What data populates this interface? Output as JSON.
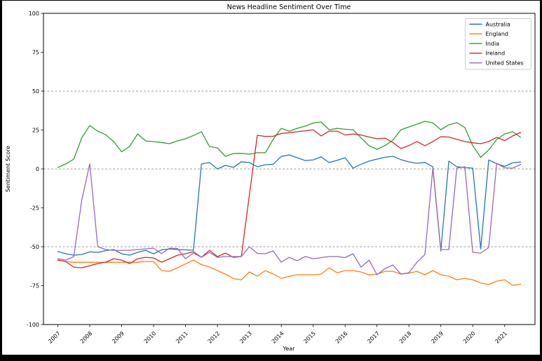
{
  "figure": {
    "outer_background": "#000000",
    "facecolor": "#ffffff",
    "spine_color": "#000000",
    "gridline_color": "#7f7f7f"
  },
  "chart_data": {
    "type": "line",
    "title": "News Headline Sentiment Over Time",
    "xlabel": "Year",
    "ylabel": "Sentiment Score",
    "xlim": [
      2006.55,
      2021.95
    ],
    "ylim": [
      -100,
      100
    ],
    "xticks": [
      2007,
      2008,
      2009,
      2010,
      2011,
      2012,
      2013,
      2014,
      2015,
      2016,
      2017,
      2018,
      2019,
      2020,
      2021
    ],
    "yticks": [
      100,
      75,
      50,
      25,
      0,
      -25,
      -50,
      -75,
      -100
    ],
    "gridlines_y": [
      50,
      0,
      -50
    ],
    "grid_style": "dashed",
    "legend_position": "upper right",
    "x": [
      2007.0,
      2007.25,
      2007.5,
      2007.75,
      2008.0,
      2008.25,
      2008.5,
      2008.75,
      2009.0,
      2009.25,
      2009.5,
      2009.75,
      2010.0,
      2010.25,
      2010.5,
      2010.75,
      2011.0,
      2011.25,
      2011.5,
      2011.75,
      2012.0,
      2012.25,
      2012.5,
      2012.75,
      2013.0,
      2013.25,
      2013.5,
      2013.75,
      2014.0,
      2014.25,
      2014.5,
      2014.75,
      2015.0,
      2015.25,
      2015.5,
      2015.75,
      2016.0,
      2016.25,
      2016.5,
      2016.75,
      2017.0,
      2017.25,
      2017.5,
      2017.75,
      2018.0,
      2018.25,
      2018.5,
      2018.75,
      2019.0,
      2019.25,
      2019.5,
      2019.75,
      2020.0,
      2020.25,
      2020.5,
      2020.75,
      2021.0,
      2021.25,
      2021.5
    ],
    "series": [
      {
        "name": "Australia",
        "color": "#1f77b4",
        "values": [
          -53,
          -54.5,
          -55.4,
          -55,
          -53.3,
          -53.6,
          -52.5,
          -51.8,
          -54.5,
          -55.4,
          -53.6,
          -52.3,
          -54.5,
          -52,
          -51.4,
          -51.8,
          -52,
          -52.3,
          3.2,
          4.1,
          0,
          2.3,
          1,
          4.6,
          4.1,
          1.4,
          2.7,
          3,
          8,
          9,
          7.2,
          5.4,
          5.8,
          7.7,
          4.1,
          5.5,
          7.2,
          0.5,
          3,
          5,
          6.3,
          7.5,
          8.1,
          6,
          4.5,
          3.6,
          4.2,
          1.4,
          -52.7,
          5,
          1.4,
          0.9,
          0.5,
          -51.4,
          5.7,
          3.4,
          1.6,
          4,
          4.4
        ]
      },
      {
        "name": "England",
        "color": "#ff7f0e",
        "values": [
          -58.5,
          -59.5,
          -60,
          -60,
          -60,
          -60,
          -60,
          -60,
          -60,
          -60,
          -60,
          -59.5,
          -59.5,
          -65.3,
          -65.8,
          -63.5,
          -61,
          -58.6,
          -61.5,
          -63,
          -65.3,
          -67.6,
          -70.5,
          -71.2,
          -66.2,
          -68.9,
          -65.3,
          -67.5,
          -70.3,
          -69,
          -68,
          -68,
          -68,
          -67.6,
          -63.5,
          -66.7,
          -65.3,
          -65.3,
          -66.2,
          -68,
          -67.6,
          -65.8,
          -65.8,
          -67.5,
          -67,
          -65.8,
          -68,
          -65.3,
          -68,
          -68.9,
          -71.2,
          -70.3,
          -71.2,
          -73.4,
          -74.3,
          -72.1,
          -71.2,
          -74.8,
          -74
        ]
      },
      {
        "name": "India",
        "color": "#2ca02c",
        "values": [
          1,
          3.2,
          6.3,
          20,
          27.9,
          24.3,
          22,
          17.6,
          11,
          14.5,
          22.5,
          18,
          17.5,
          17,
          16.2,
          18,
          19.4,
          21.5,
          23.9,
          14.4,
          13.5,
          8,
          9.9,
          10,
          9.5,
          10.4,
          10.4,
          19,
          26.1,
          24.3,
          26.1,
          27.5,
          29.5,
          30.2,
          25.2,
          26.1,
          25.5,
          25.2,
          20,
          14.9,
          12.6,
          15,
          18.5,
          25.2,
          27,
          28.8,
          30.6,
          29.7,
          25.2,
          28.4,
          29.7,
          26.6,
          15,
          7.5,
          12.2,
          18.9,
          22.5,
          23.9,
          20.3
        ]
      },
      {
        "name": "Ireland",
        "color": "#d62728",
        "values": [
          -58.6,
          -59.5,
          -63.1,
          -63.5,
          -62.2,
          -60.8,
          -59.9,
          -57.7,
          -58.6,
          -60.8,
          -57.7,
          -56.8,
          -57.2,
          -59.9,
          -57.7,
          -55.4,
          -54.5,
          -53.2,
          -56.8,
          -52.3,
          -56.3,
          -54.1,
          -56.8,
          -56.3,
          -17,
          21.6,
          20.9,
          21,
          22.8,
          23.3,
          23.9,
          24.5,
          25.2,
          21.2,
          24.3,
          24.3,
          21.8,
          22.5,
          21.8,
          20.5,
          19.4,
          19.8,
          17,
          13.1,
          15,
          17.6,
          14.9,
          17.5,
          20.7,
          20.5,
          19,
          17.6,
          16.8,
          16.2,
          17.6,
          20.3,
          18.2,
          21.2,
          23.4
        ]
      },
      {
        "name": "United States",
        "color": "#9467bd",
        "values": [
          -57.7,
          -58.6,
          -56.3,
          -20,
          3.2,
          -50,
          -51.8,
          -52.3,
          -52.3,
          -52.3,
          -51.8,
          -51.4,
          -50.9,
          -54.5,
          -50.9,
          -51.2,
          -57.7,
          -54.1,
          -56.8,
          -53.6,
          -56.8,
          -56.3,
          -56.3,
          -56.3,
          -50,
          -54.3,
          -54.5,
          -52.7,
          -59.9,
          -56.8,
          -59,
          -56.3,
          -57.7,
          -57,
          -56.3,
          -56.3,
          -57,
          -54.5,
          -63.1,
          -58.6,
          -68,
          -64,
          -61.7,
          -67.6,
          -66.7,
          -60,
          -55,
          0.5,
          -51.8,
          -51.8,
          0.5,
          1.4,
          -53.6,
          -54.1,
          -50.5,
          3.6,
          0.7,
          0.5,
          2.9
        ]
      }
    ]
  }
}
